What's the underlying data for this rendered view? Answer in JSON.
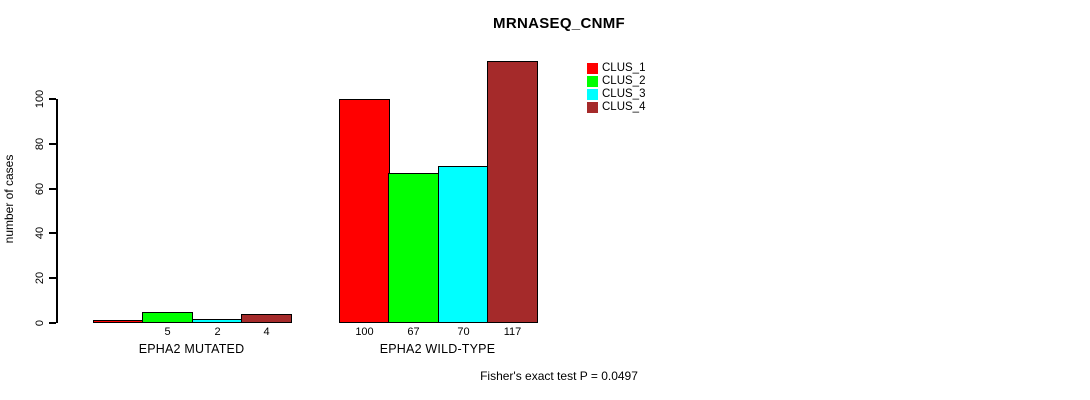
{
  "chart_data": {
    "type": "bar",
    "title": "MRNASEQ_CNMF",
    "ylabel": "number of cases",
    "xlabel": "",
    "ylim": [
      0,
      100
    ],
    "yticks": [
      0,
      20,
      40,
      60,
      80,
      100
    ],
    "grid": false,
    "legend_position": "top-right",
    "categories": [
      "EPHA2 MUTATED",
      "EPHA2 WILD-TYPE"
    ],
    "series": [
      {
        "name": "CLUS_1",
        "color": "#FF0000",
        "values": [
          0,
          100
        ]
      },
      {
        "name": "CLUS_2",
        "color": "#00FF00",
        "values": [
          5,
          67
        ]
      },
      {
        "name": "CLUS_3",
        "color": "#00FFFF",
        "values": [
          2,
          70
        ]
      },
      {
        "name": "CLUS_4",
        "color": "#A52A2A",
        "values": [
          4,
          117
        ]
      }
    ],
    "groups": [
      {
        "label": "EPHA2 MUTATED",
        "values": [
          0,
          5,
          2,
          4
        ],
        "bar_labels": [
          "",
          "5",
          "2",
          "4"
        ]
      },
      {
        "label": "EPHA2 WILD-TYPE",
        "values": [
          100,
          67,
          70,
          117
        ],
        "bar_labels": [
          "100",
          "67",
          "70",
          "117"
        ]
      }
    ],
    "footnote": "Fisher's exact test P = 0.0497"
  }
}
